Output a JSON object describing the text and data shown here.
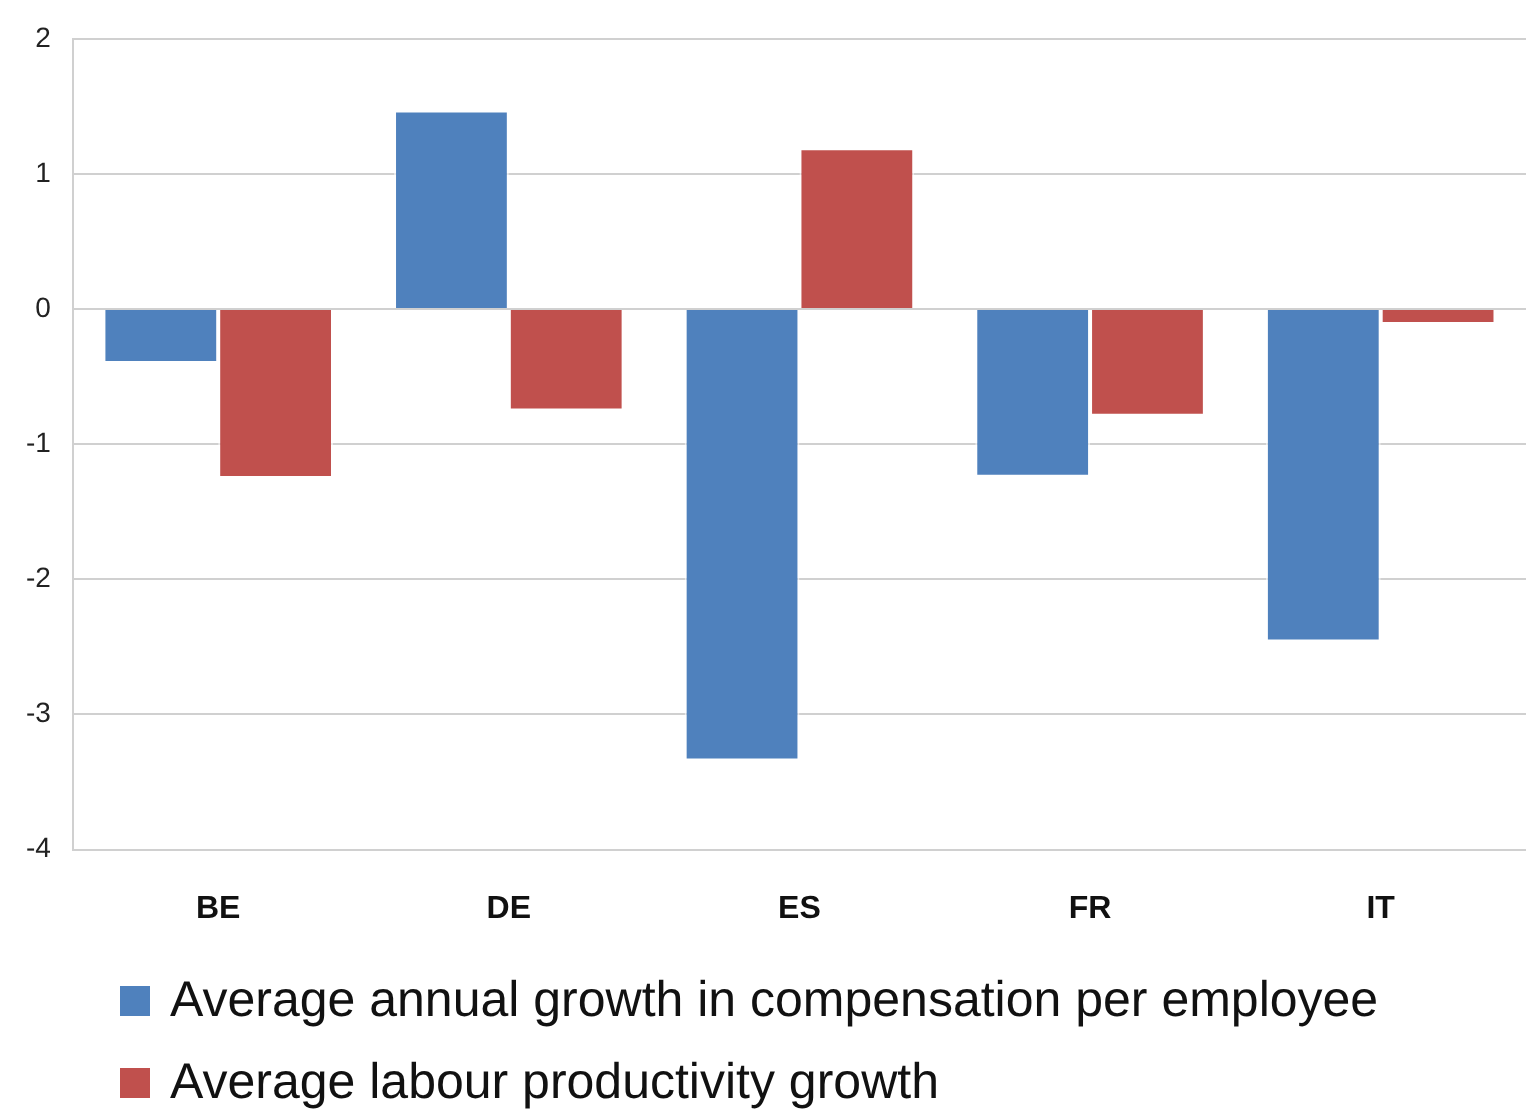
{
  "chart_data": {
    "type": "bar",
    "categories": [
      "BE",
      "DE",
      "ES",
      "FR",
      "IT"
    ],
    "series": [
      {
        "name": "Average annual growth in compensation per employee",
        "color": "#4f81bd",
        "values": [
          -0.4,
          1.47,
          -3.34,
          -1.24,
          -2.46
        ]
      },
      {
        "name": "Average labour productivity growth",
        "color": "#c0504d",
        "values": [
          -1.25,
          -0.75,
          1.19,
          -0.79,
          -0.11
        ]
      }
    ],
    "ylim": [
      -4,
      2
    ],
    "yticks": [
      -4,
      -3,
      -2,
      -1,
      0,
      1,
      2
    ],
    "grid": "y",
    "legend": "bottom"
  }
}
